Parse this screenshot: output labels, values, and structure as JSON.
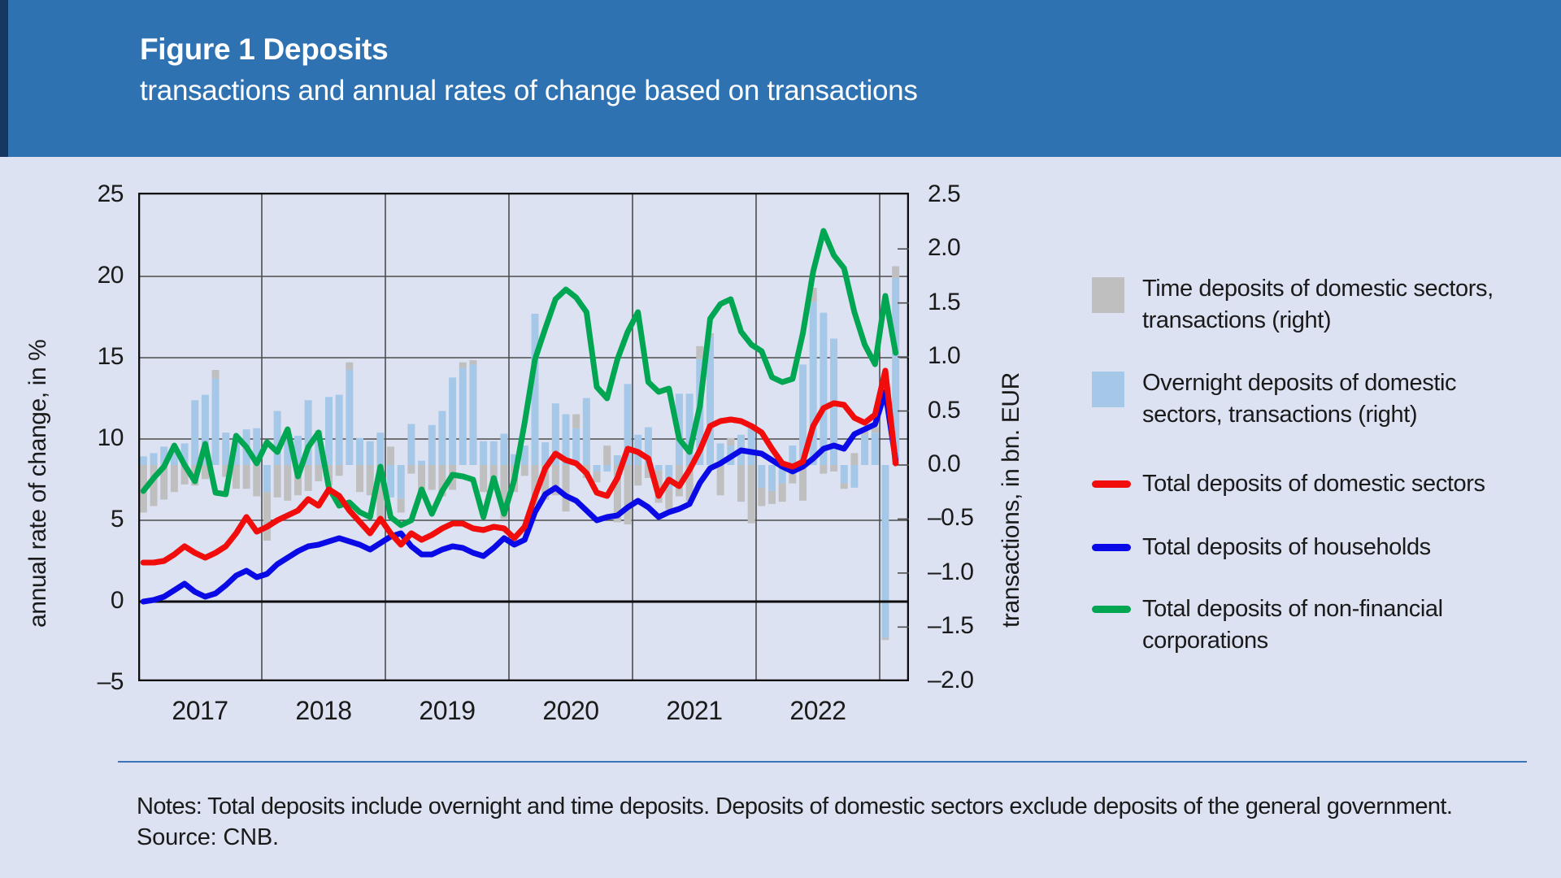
{
  "header": {
    "title": "Figure 1 Deposits",
    "subtitle": "transactions and annual rates of change based on transactions"
  },
  "chart": {
    "left_axis": {
      "title": "annual rate of change, in %",
      "ticks": [
        25,
        20,
        15,
        10,
        5,
        0,
        -5
      ],
      "min": -5,
      "max": 25
    },
    "right_axis": {
      "title": "transactions, in bn. EUR",
      "ticks": [
        2.5,
        2.0,
        1.5,
        1.0,
        0.5,
        0.0,
        -0.5,
        -1.0,
        -1.5,
        -2.0
      ],
      "min": -2.0,
      "max": 2.5
    },
    "x_axis": {
      "years": [
        "2017",
        "2018",
        "2019",
        "2020",
        "2021",
        "2022"
      ]
    },
    "legend": [
      {
        "swatch": "bar",
        "color": "#bfbfbf",
        "label": "Time deposits of domestic sectors, transactions (right)"
      },
      {
        "swatch": "bar",
        "color": "#a5c8e8",
        "label": "Overnight deposits of domestic sectors, transactions (right)"
      },
      {
        "swatch": "line",
        "color": "#f20d0d",
        "label": "Total deposits of domestic sectors"
      },
      {
        "swatch": "line",
        "color": "#0a0ae6",
        "label": "Total deposits of households"
      },
      {
        "swatch": "line",
        "color": "#00a651",
        "label": "Total deposits of non-financial corporations"
      }
    ]
  },
  "notes": "Notes: Total deposits include overnight and  time deposits. Deposits of domestic sectors exclude deposits of the general government.",
  "source": "Source: CNB.",
  "colors": {
    "header_bg": "#2e72b2",
    "header_stripe": "#173660",
    "page_bg": "#dce2f2",
    "bar_overnight": "#a5c8e8",
    "bar_time": "#bfbfbf",
    "line_total": "#f20d0d",
    "line_households": "#0a0ae6",
    "line_nfc": "#00a651",
    "grid": "#4d4d4d",
    "frame": "#0d0d0d",
    "rule": "#3b74b8"
  },
  "chart_data": {
    "type": "combo",
    "title": "Figure 1 Deposits",
    "xlabel": "",
    "ylabel_left": "annual rate of change, in %",
    "ylabel_right": "transactions, in bn. EUR",
    "ylim_left": [
      -5,
      25
    ],
    "ylim_right": [
      -2.0,
      2.5
    ],
    "grid": true,
    "legend_position": "right",
    "months": [
      "2017-01",
      "2017-02",
      "2017-03",
      "2017-04",
      "2017-05",
      "2017-06",
      "2017-07",
      "2017-08",
      "2017-09",
      "2017-10",
      "2017-11",
      "2017-12",
      "2018-01",
      "2018-02",
      "2018-03",
      "2018-04",
      "2018-05",
      "2018-06",
      "2018-07",
      "2018-08",
      "2018-09",
      "2018-10",
      "2018-11",
      "2018-12",
      "2019-01",
      "2019-02",
      "2019-03",
      "2019-04",
      "2019-05",
      "2019-06",
      "2019-07",
      "2019-08",
      "2019-09",
      "2019-10",
      "2019-11",
      "2019-12",
      "2020-01",
      "2020-02",
      "2020-03",
      "2020-04",
      "2020-05",
      "2020-06",
      "2020-07",
      "2020-08",
      "2020-09",
      "2020-10",
      "2020-11",
      "2020-12",
      "2021-01",
      "2021-02",
      "2021-03",
      "2021-04",
      "2021-05",
      "2021-06",
      "2021-07",
      "2021-08",
      "2021-09",
      "2021-10",
      "2021-11",
      "2021-12",
      "2022-01",
      "2022-02",
      "2022-03",
      "2022-04",
      "2022-05",
      "2022-06",
      "2022-07",
      "2022-08",
      "2022-09",
      "2022-10",
      "2022-11",
      "2022-12",
      "2023-01",
      "2023-02"
    ],
    "series": [
      {
        "name": "Time deposits of domestic sectors, transactions (right)",
        "type": "bar",
        "axis": "right",
        "unit": "bn EUR",
        "values": [
          -0.44,
          -0.38,
          -0.32,
          -0.25,
          -0.18,
          -0.19,
          -0.13,
          0.08,
          -0.11,
          -0.22,
          -0.22,
          -0.29,
          -0.45,
          -0.3,
          -0.33,
          -0.28,
          -0.24,
          -0.15,
          -0.19,
          -0.1,
          0.07,
          -0.25,
          -0.28,
          -0.5,
          0.17,
          -0.13,
          -0.08,
          -0.28,
          -0.23,
          -0.29,
          -0.23,
          0.05,
          0.04,
          -0.25,
          -0.15,
          -0.5,
          -0.25,
          -0.1,
          -0.37,
          -0.32,
          -0.28,
          -0.43,
          0.13,
          -0.12,
          -0.1,
          0.18,
          -0.53,
          -0.55,
          -0.19,
          -0.12,
          -0.3,
          -0.19,
          -0.29,
          -0.34,
          0.12,
          0.03,
          -0.28,
          0.07,
          -0.34,
          -0.54,
          -0.17,
          -0.12,
          -0.17,
          -0.17,
          -0.33,
          0.13,
          -0.08,
          -0.06,
          -0.05,
          0.11,
          0.05,
          0.05,
          -0.02,
          0.11
        ]
      },
      {
        "name": "Overnight deposits of domestic sectors, transactions (right)",
        "type": "bar",
        "axis": "right",
        "unit": "bn EUR",
        "values": [
          0.08,
          0.11,
          0.17,
          0.16,
          0.2,
          0.6,
          0.65,
          0.8,
          0.3,
          0.26,
          0.33,
          0.34,
          -0.25,
          0.5,
          0.28,
          0.27,
          0.6,
          0.32,
          0.63,
          0.65,
          0.88,
          0.25,
          0.22,
          0.3,
          -0.3,
          -0.31,
          0.38,
          0.04,
          0.37,
          0.5,
          0.81,
          0.9,
          0.93,
          0.22,
          0.22,
          0.29,
          0.1,
          0.18,
          1.4,
          0.21,
          0.57,
          0.47,
          0.34,
          0.62,
          -0.06,
          -0.06,
          0.09,
          0.75,
          0.28,
          0.35,
          -0.05,
          -0.22,
          0.66,
          0.66,
          0.98,
          1.19,
          0.2,
          0.18,
          0.28,
          0.35,
          -0.21,
          -0.24,
          -0.17,
          0.18,
          0.93,
          1.51,
          1.41,
          1.17,
          -0.17,
          -0.21,
          0.28,
          0.3,
          -1.6,
          1.73
        ]
      },
      {
        "name": "Total deposits of domestic sectors",
        "type": "line",
        "axis": "left",
        "unit": "%",
        "values": [
          2.4,
          2.4,
          2.5,
          2.9,
          3.4,
          3.0,
          2.7,
          3.0,
          3.4,
          4.2,
          5.2,
          4.3,
          4.6,
          5.0,
          5.3,
          5.6,
          6.3,
          5.9,
          6.9,
          6.5,
          5.6,
          4.9,
          4.2,
          5.1,
          4.2,
          3.5,
          4.2,
          3.8,
          4.1,
          4.5,
          4.8,
          4.8,
          4.5,
          4.4,
          4.6,
          4.5,
          3.9,
          4.6,
          6.5,
          8.2,
          9.1,
          8.7,
          8.5,
          7.9,
          6.7,
          6.5,
          7.6,
          9.4,
          9.2,
          8.8,
          6.5,
          7.5,
          7.1,
          8.1,
          9.3,
          10.8,
          11.1,
          11.2,
          11.1,
          10.8,
          10.4,
          9.4,
          8.5,
          8.3,
          8.6,
          10.8,
          11.9,
          12.2,
          12.1,
          11.3,
          11.0,
          11.5,
          14.2,
          8.5
        ]
      },
      {
        "name": "Total deposits of households",
        "type": "line",
        "axis": "left",
        "unit": "%",
        "values": [
          0.0,
          0.1,
          0.3,
          0.7,
          1.1,
          0.6,
          0.3,
          0.5,
          1.0,
          1.6,
          1.9,
          1.5,
          1.7,
          2.3,
          2.7,
          3.1,
          3.4,
          3.5,
          3.7,
          3.9,
          3.7,
          3.5,
          3.2,
          3.6,
          4.0,
          4.2,
          3.4,
          2.9,
          2.9,
          3.2,
          3.4,
          3.3,
          3.0,
          2.8,
          3.3,
          3.9,
          3.5,
          3.8,
          5.5,
          6.6,
          7.0,
          6.5,
          6.2,
          5.6,
          5.0,
          5.2,
          5.3,
          5.8,
          6.2,
          5.8,
          5.2,
          5.5,
          5.7,
          6.0,
          7.3,
          8.2,
          8.5,
          8.9,
          9.3,
          9.2,
          9.1,
          8.7,
          8.3,
          8.0,
          8.3,
          8.8,
          9.4,
          9.6,
          9.4,
          10.3,
          10.6,
          10.9,
          12.9,
          8.7
        ]
      },
      {
        "name": "Total deposits of non-financial corporations",
        "type": "line",
        "axis": "left",
        "unit": "%",
        "values": [
          6.8,
          7.6,
          8.3,
          9.6,
          8.4,
          7.4,
          9.7,
          6.7,
          6.6,
          10.2,
          9.5,
          8.5,
          9.8,
          9.2,
          10.6,
          7.7,
          9.5,
          10.4,
          7.0,
          5.9,
          6.1,
          5.5,
          5.2,
          8.3,
          5.2,
          4.7,
          5.0,
          6.9,
          5.4,
          6.8,
          7.8,
          7.7,
          7.5,
          5.2,
          7.6,
          5.4,
          7.5,
          11.0,
          14.9,
          16.8,
          18.6,
          19.2,
          18.7,
          17.8,
          13.2,
          12.5,
          14.9,
          16.6,
          17.8,
          13.5,
          12.9,
          13.1,
          10.0,
          9.2,
          12.0,
          17.4,
          18.3,
          18.6,
          16.6,
          15.8,
          15.4,
          13.8,
          13.5,
          13.7,
          16.5,
          20.3,
          22.8,
          21.3,
          20.5,
          17.8,
          15.8,
          14.6,
          18.8,
          15.3
        ]
      }
    ]
  }
}
